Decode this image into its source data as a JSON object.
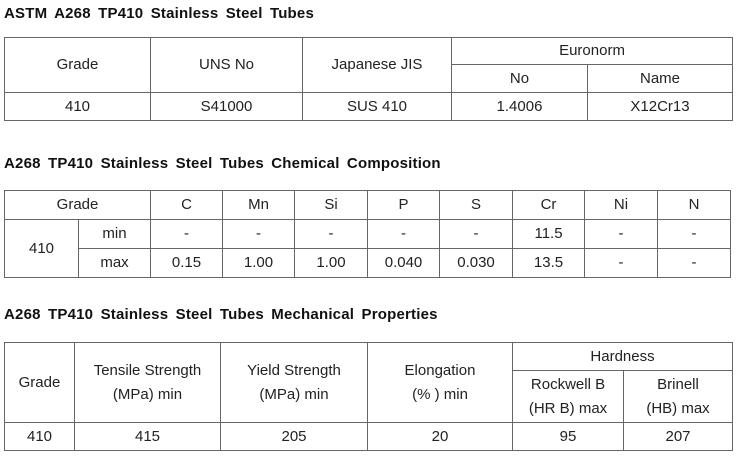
{
  "sections": [
    {
      "title": "ASTM A268 TP410 Stainless Steel Tubes",
      "header": [
        "Grade",
        "UNS No",
        "Japanese JIS",
        "Euronorm"
      ],
      "subheader": [
        "No",
        "Name"
      ],
      "rows": [
        [
          "410",
          "S41000",
          "SUS 410",
          "1.4006",
          "X12Cr13"
        ]
      ]
    },
    {
      "title": "A268 TP410 Stainless Steel Tubes Chemical Composition",
      "header": [
        "Grade",
        "C",
        "Mn",
        "Si",
        "P",
        "S",
        "Cr",
        "Ni",
        "N"
      ],
      "grade": "410",
      "rows": [
        [
          "min",
          "-",
          "-",
          "-",
          "-",
          "-",
          "11.5",
          "-",
          "-"
        ],
        [
          "max",
          "0.15",
          "1.00",
          "1.00",
          "0.040",
          "0.030",
          "13.5",
          "-",
          "-"
        ]
      ]
    },
    {
      "title": "A268 TP410 Stainless Steel Tubes Mechanical Properties",
      "header": [
        "Grade",
        "Tensile Strength\n(MPa) min",
        "Yield Strength\n(MPa) min",
        "Elongation\n(% ) min",
        "Hardness"
      ],
      "subheader": [
        "Rockwell B\n(HR B) max",
        "Brinell\n(HB) max"
      ],
      "rows": [
        [
          "410",
          "415",
          "205",
          "20",
          "95",
          "207"
        ]
      ]
    }
  ]
}
